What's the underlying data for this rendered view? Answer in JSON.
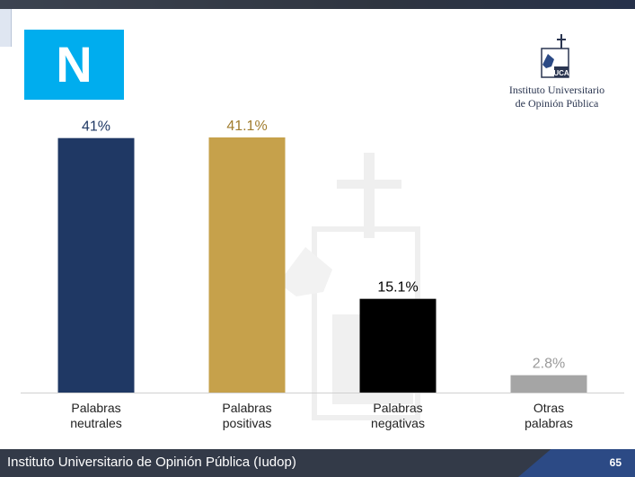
{
  "slide": {
    "letter": "N",
    "logo": {
      "line1": "Instituto Universitario",
      "line2": "de Opinión Pública"
    },
    "footer": "Instituto Universitario de Opinión Pública (Iudop)",
    "page_number": "65",
    "colors": {
      "letter_box": "#00adee",
      "footer": "#333a48",
      "footer_accent": "#2c4a85"
    }
  },
  "chart_data": {
    "type": "bar",
    "categories": [
      [
        "Palabras",
        "neutrales"
      ],
      [
        "Palabras",
        "positivas"
      ],
      [
        "Palabras",
        "negativas"
      ],
      [
        "Otras",
        "palabras"
      ]
    ],
    "values": [
      41,
      41.1,
      15.1,
      2.8
    ],
    "data_labels": [
      "41%",
      "41.1%",
      "15.1%",
      "2.8%"
    ],
    "colors": [
      "#1f3864",
      "#c6a14b",
      "#000000",
      "#a5a5a5"
    ],
    "label_colors": [
      "#1f3864",
      "#a07c2e",
      "#000000",
      "#9a9a9a"
    ],
    "ylim": [
      0,
      41.1
    ],
    "grid": false,
    "legend": "none"
  }
}
